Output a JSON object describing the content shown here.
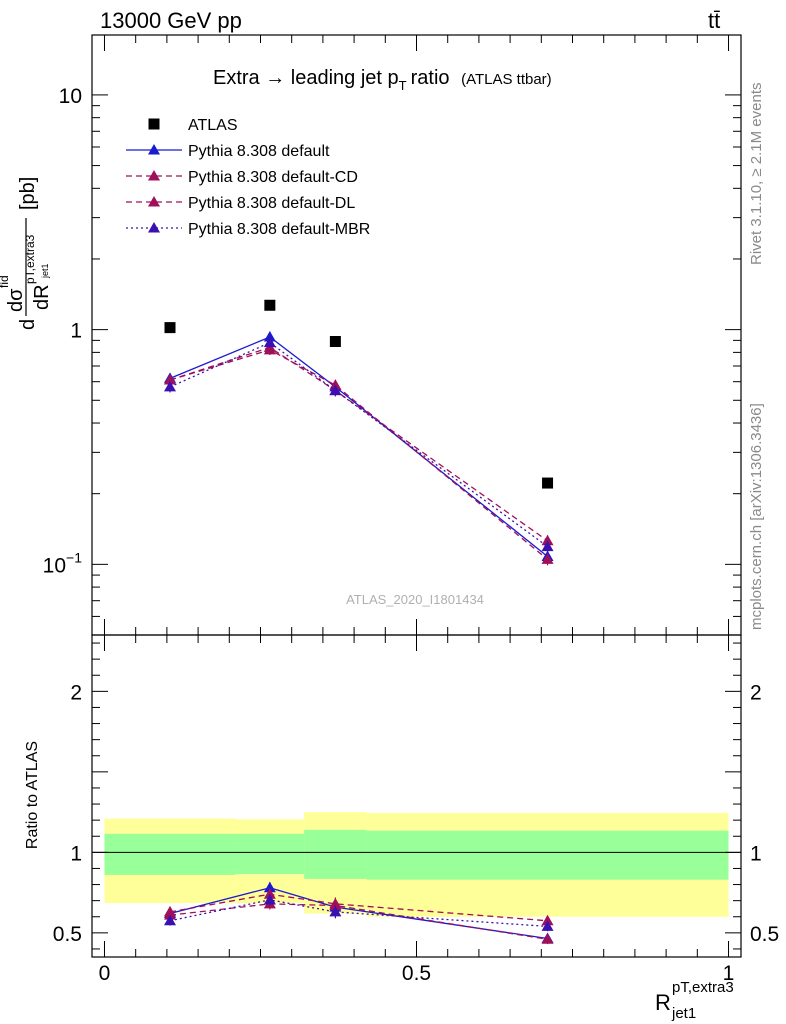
{
  "header": {
    "left": "13000 GeV pp",
    "right": "tt̄"
  },
  "side_text": {
    "rivet": "Rivet 3.1.10, ≥ 2.1M events",
    "mcplots": "mcplots.cern.ch [arXiv:1306.3436]"
  },
  "watermark": "ATLAS_2020_I1801434",
  "chart_data": [
    {
      "type": "scatter",
      "title": "Extra → leading jet p_T ratio",
      "subtitle": "(ATLAS ttbar)",
      "ylabel": "dσ^fid / dR^pT,extra3_jet1 [pb]",
      "yscale": "log",
      "ylim": [
        0.05,
        18
      ],
      "xlim": [
        -0.02,
        1.02
      ],
      "y_tick_labels": [
        "10^-1",
        "1",
        "10"
      ],
      "legend_position": "top-left",
      "series": [
        {
          "name": "ATLAS",
          "color": "#000000",
          "marker": "square",
          "x": [
            0.105,
            0.265,
            0.37,
            0.71
          ],
          "y": [
            1.02,
            1.27,
            0.89,
            0.222
          ]
        },
        {
          "name": "Pythia 8.308 default",
          "color": "#1a1ad0",
          "line": "solid",
          "x": [
            0.105,
            0.265,
            0.37,
            0.71
          ],
          "y": [
            0.62,
            0.93,
            0.57,
            0.108
          ],
          "yerr": [
            0.03,
            0.05,
            0.03,
            0.006
          ]
        },
        {
          "name": "Pythia 8.308 default-CD",
          "color": "#a0105a",
          "line": "dashed",
          "x": [
            0.105,
            0.265,
            0.37,
            0.71
          ],
          "y": [
            0.61,
            0.82,
            0.58,
            0.105
          ],
          "yerr": [
            0.03,
            0.04,
            0.03,
            0.006
          ]
        },
        {
          "name": "Pythia 8.308 default-DL",
          "color": "#a0105a",
          "line": "dashed",
          "x": [
            0.105,
            0.265,
            0.37,
            0.71
          ],
          "y": [
            0.61,
            0.84,
            0.55,
            0.126
          ],
          "yerr": [
            0.03,
            0.04,
            0.03,
            0.007
          ]
        },
        {
          "name": "Pythia 8.308 default-MBR",
          "color": "#3a10b0",
          "line": "dotted",
          "x": [
            0.105,
            0.265,
            0.37,
            0.71
          ],
          "y": [
            0.57,
            0.88,
            0.55,
            0.119
          ],
          "yerr": [
            0.03,
            0.04,
            0.03,
            0.007
          ]
        }
      ]
    },
    {
      "type": "line",
      "ylabel": "Ratio to ATLAS",
      "xlabel": "R^pT,extra3_jet1",
      "ylim": [
        0.35,
        2.35
      ],
      "xlim": [
        -0.02,
        1.02
      ],
      "x_tick_labels": [
        "0",
        "0.5",
        "1"
      ],
      "y_tick_labels": [
        "0.5",
        "1",
        "2"
      ],
      "reference_line": 1,
      "bands": {
        "bins": [
          0.0,
          0.21,
          0.32,
          0.42,
          1.0
        ],
        "inner_low": [
          0.86,
          0.865,
          0.835,
          0.83
        ],
        "inner_high": [
          1.115,
          1.115,
          1.14,
          1.135
        ],
        "outer_low": [
          0.685,
          0.685,
          0.62,
          0.6
        ],
        "outer_high": [
          1.21,
          1.205,
          1.25,
          1.245
        ],
        "inner_color": "#99ff99",
        "outer_color": "#ffff99"
      },
      "series": [
        {
          "name": "Pythia 8.308 default",
          "color": "#1a1ad0",
          "line": "solid",
          "x": [
            0.105,
            0.265,
            0.37,
            0.71
          ],
          "y": [
            0.62,
            0.78,
            0.66,
            0.465
          ],
          "yerr": [
            0.03,
            0.035,
            0.04,
            0.03
          ]
        },
        {
          "name": "Pythia 8.308 default-CD",
          "color": "#a0105a",
          "line": "dashed",
          "x": [
            0.105,
            0.265,
            0.37,
            0.71
          ],
          "y": [
            0.61,
            0.68,
            0.67,
            0.46
          ],
          "yerr": [
            0.03,
            0.035,
            0.04,
            0.03
          ]
        },
        {
          "name": "Pythia 8.308 default-DL",
          "color": "#a0105a",
          "line": "dashed",
          "x": [
            0.105,
            0.265,
            0.37,
            0.71
          ],
          "y": [
            0.63,
            0.74,
            0.68,
            0.575
          ],
          "yerr": [
            0.03,
            0.035,
            0.04,
            0.03
          ]
        },
        {
          "name": "Pythia 8.308 default-MBR",
          "color": "#3a10b0",
          "line": "dotted",
          "x": [
            0.105,
            0.265,
            0.37,
            0.71
          ],
          "y": [
            0.575,
            0.705,
            0.63,
            0.54
          ],
          "yerr": [
            0.03,
            0.035,
            0.04,
            0.03
          ]
        }
      ]
    }
  ]
}
